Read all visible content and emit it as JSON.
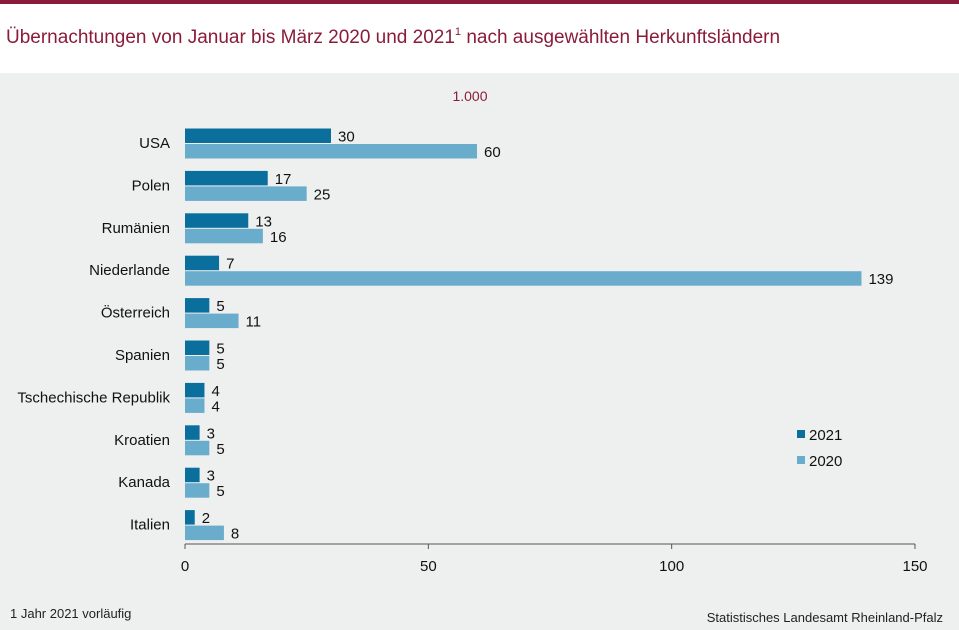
{
  "header": {
    "title": "Übernachtungen von Januar bis März 2020 und 2021",
    "title_superscript": "1",
    "title_rest": "nach ausgewählten Herkunftsländern"
  },
  "unit_label": "1.000",
  "footnote": "1 Jahr 2021 vorläufig",
  "source": "Statistisches Landesamt Rheinland-Pfalz",
  "colors": {
    "accent": "#8a1c3a",
    "series_2021": "#0a6f9c",
    "series_2020": "#6aaccc"
  },
  "chart_data": {
    "type": "bar",
    "orientation": "horizontal",
    "categories": [
      "USA",
      "Polen",
      "Rumänien",
      "Niederlande",
      "Österreich",
      "Spanien",
      "Tschechische Republik",
      "Kroatien",
      "Kanada",
      "Italien"
    ],
    "series": [
      {
        "name": "2021",
        "values": [
          30,
          17,
          13,
          7,
          5,
          5,
          4,
          3,
          3,
          2
        ]
      },
      {
        "name": "2020",
        "values": [
          60,
          25,
          16,
          139,
          11,
          5,
          4,
          5,
          5,
          8
        ]
      }
    ],
    "xlim": [
      0,
      150
    ],
    "xticks": [
      0,
      50,
      100,
      150
    ],
    "grid": false,
    "legend_position": "right"
  }
}
